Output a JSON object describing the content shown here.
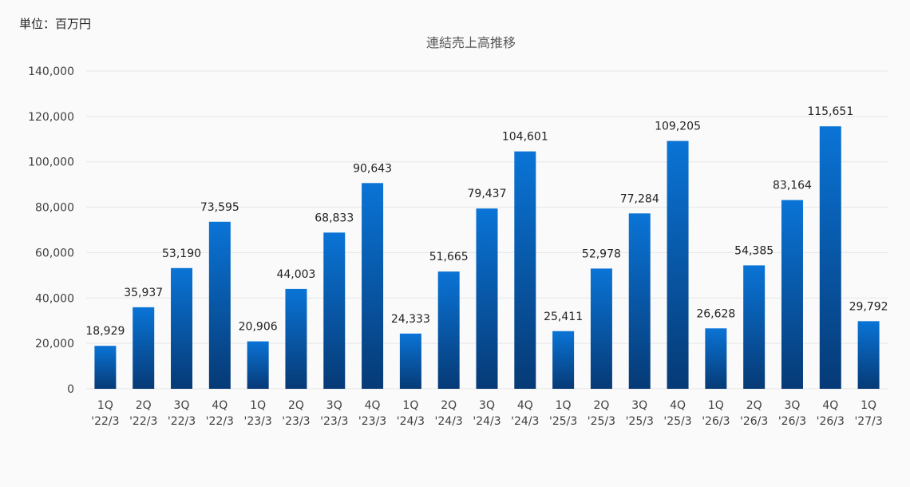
{
  "unit_label": "単位：百万円",
  "chart_data": {
    "type": "bar",
    "title": "連結売上高推移",
    "categories": [
      [
        "1Q",
        "'22/3"
      ],
      [
        "2Q",
        "'22/3"
      ],
      [
        "3Q",
        "'22/3"
      ],
      [
        "4Q",
        "'22/3"
      ],
      [
        "1Q",
        "'23/3"
      ],
      [
        "2Q",
        "'23/3"
      ],
      [
        "3Q",
        "'23/3"
      ],
      [
        "4Q",
        "'23/3"
      ],
      [
        "1Q",
        "'24/3"
      ],
      [
        "2Q",
        "'24/3"
      ],
      [
        "3Q",
        "'24/3"
      ],
      [
        "4Q",
        "'24/3"
      ],
      [
        "1Q",
        "'25/3"
      ],
      [
        "2Q",
        "'25/3"
      ],
      [
        "3Q",
        "'25/3"
      ],
      [
        "4Q",
        "'25/3"
      ],
      [
        "1Q",
        "'26/3"
      ],
      [
        "2Q",
        "'26/3"
      ],
      [
        "3Q",
        "'26/3"
      ],
      [
        "4Q",
        "'26/3"
      ],
      [
        "1Q",
        "'27/3"
      ]
    ],
    "values": [
      18929,
      35937,
      53190,
      73595,
      20906,
      44003,
      68833,
      90643,
      24333,
      51665,
      79437,
      104601,
      25411,
      52978,
      77284,
      109205,
      26628,
      54385,
      83164,
      115651,
      29792
    ],
    "value_labels": [
      "18,929",
      "35,937",
      "53,190",
      "73,595",
      "20,906",
      "44,003",
      "68,833",
      "90,643",
      "24,333",
      "51,665",
      "79,437",
      "104,601",
      "25,411",
      "52,978",
      "77,284",
      "109,205",
      "26,628",
      "54,385",
      "83,164",
      "115,651",
      "29,792"
    ],
    "ylim": [
      0,
      140000
    ],
    "yticks": [
      0,
      20000,
      40000,
      60000,
      80000,
      100000,
      120000,
      140000
    ],
    "ytick_labels": [
      "0",
      "20,000",
      "40,000",
      "60,000",
      "80,000",
      "100,000",
      "120,000",
      "140,000"
    ],
    "xlabel": "",
    "ylabel": "",
    "grid": true,
    "legend": "none",
    "colors": {
      "bar_top": "#0a74d6",
      "bar_bottom": "#063a76",
      "grid": "#e6e6e6",
      "tick_text": "#404040",
      "value_text": "#222222"
    }
  }
}
